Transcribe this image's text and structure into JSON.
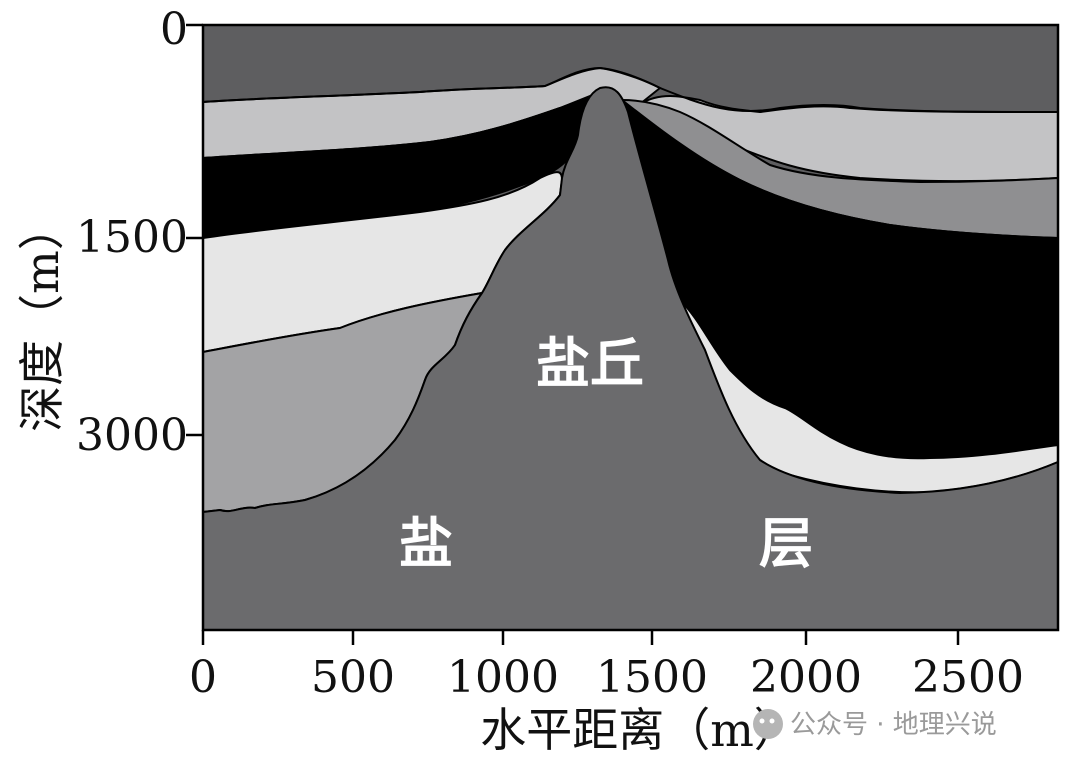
{
  "figure": {
    "x_axis": {
      "title": "水平距离（m）",
      "ticks": [
        "0",
        "500",
        "1000",
        "1500",
        "2000",
        "2500"
      ]
    },
    "y_axis": {
      "title": "深度（m）",
      "ticks": [
        "0",
        "1500",
        "3000"
      ]
    },
    "labels": {
      "salt_dome": "盐丘",
      "salt_layer_left": "盐",
      "salt_layer_right": "层"
    },
    "watermark": "公众号 · 地理兴说",
    "colors": {
      "background_dark": "#5e5e60",
      "salt": "#6b6b6d",
      "light_gray": "#c3c3c5",
      "very_light_gray": "#e6e6e6",
      "black_layer": "#000000",
      "mid_gray": "#a3a3a5",
      "gray_right": "#8f8f91"
    }
  }
}
